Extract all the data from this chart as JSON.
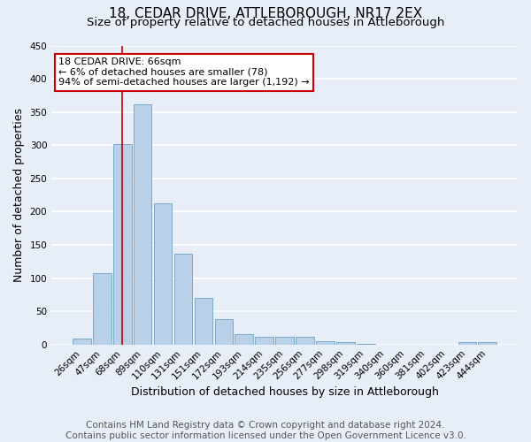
{
  "title": "18, CEDAR DRIVE, ATTLEBOROUGH, NR17 2EX",
  "subtitle": "Size of property relative to detached houses in Attleborough",
  "xlabel": "Distribution of detached houses by size in Attleborough",
  "ylabel": "Number of detached properties",
  "footer_line1": "Contains HM Land Registry data © Crown copyright and database right 2024.",
  "footer_line2": "Contains public sector information licensed under the Open Government Licence v3.0.",
  "bin_labels": [
    "26sqm",
    "47sqm",
    "68sqm",
    "89sqm",
    "110sqm",
    "131sqm",
    "151sqm",
    "172sqm",
    "193sqm",
    "214sqm",
    "235sqm",
    "256sqm",
    "277sqm",
    "298sqm",
    "319sqm",
    "340sqm",
    "360sqm",
    "381sqm",
    "402sqm",
    "423sqm",
    "444sqm"
  ],
  "bar_values": [
    9,
    108,
    302,
    361,
    213,
    137,
    70,
    38,
    15,
    12,
    11,
    11,
    5,
    3,
    1,
    0,
    0,
    0,
    0,
    4,
    3
  ],
  "bar_color": "#b8d0e8",
  "bar_edge_color": "#7aaac8",
  "annotation_text_line1": "18 CEDAR DRIVE: 66sqm",
  "annotation_text_line2": "← 6% of detached houses are smaller (78)",
  "annotation_text_line3": "94% of semi-detached houses are larger (1,192) →",
  "annotation_box_facecolor": "#ffffff",
  "annotation_box_edgecolor": "#cc0000",
  "vline_color": "#cc0000",
  "vline_x": 2.0,
  "ylim": [
    0,
    450
  ],
  "yticks": [
    0,
    50,
    100,
    150,
    200,
    250,
    300,
    350,
    400,
    450
  ],
  "background_color": "#e8eef8",
  "axes_background": "#e8eef8",
  "grid_color": "#ffffff",
  "title_fontsize": 11,
  "subtitle_fontsize": 9.5,
  "xlabel_fontsize": 9,
  "ylabel_fontsize": 9,
  "tick_fontsize": 7.5,
  "annotation_fontsize": 8,
  "footer_fontsize": 7.5
}
